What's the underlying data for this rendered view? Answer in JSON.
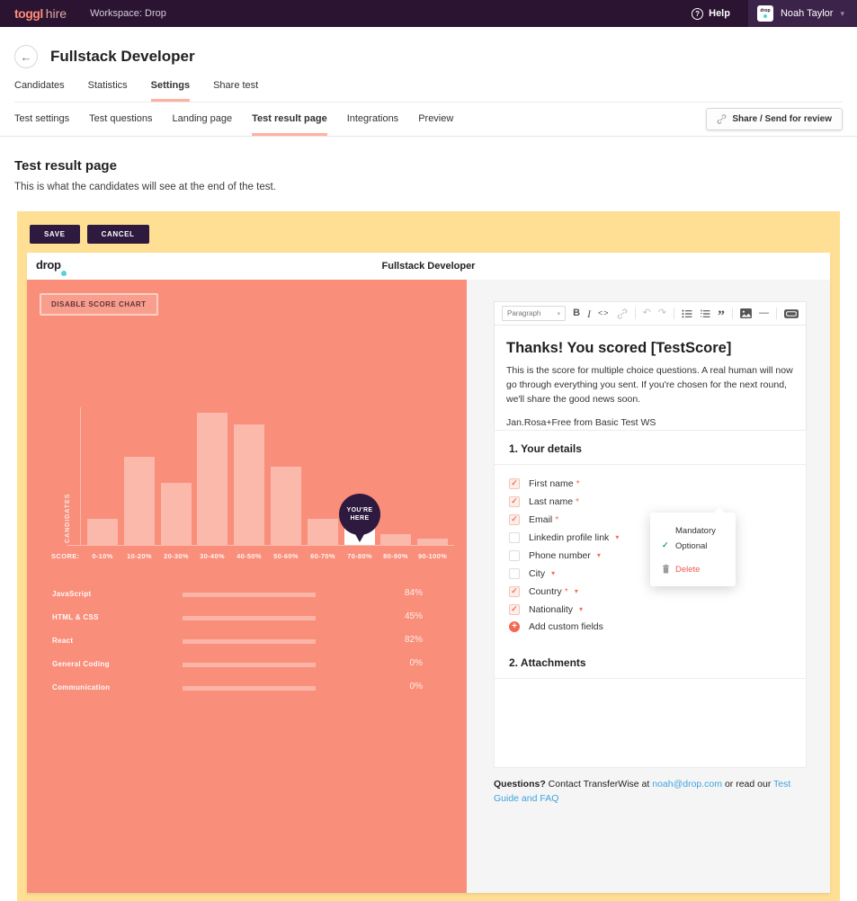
{
  "navbar": {
    "logo_toggl": "toggl",
    "logo_hire": "hire",
    "workspace": "Workspace: Drop",
    "help_label": "Help",
    "help_icon": "?",
    "avatar_text": "drop",
    "user_name": "Noah Taylor"
  },
  "header": {
    "title": "Fullstack Developer",
    "tabs": [
      {
        "label": "Candidates",
        "active": false
      },
      {
        "label": "Statistics",
        "active": false
      },
      {
        "label": "Settings",
        "active": true
      },
      {
        "label": "Share test",
        "active": false
      }
    ],
    "subtabs": [
      {
        "label": "Test settings",
        "active": false
      },
      {
        "label": "Test questions",
        "active": false
      },
      {
        "label": "Landing page",
        "active": false
      },
      {
        "label": "Test result page",
        "active": true
      },
      {
        "label": "Integrations",
        "active": false
      },
      {
        "label": "Preview",
        "active": false
      }
    ],
    "share_button": "Share / Send for review"
  },
  "page": {
    "title": "Test result page",
    "description": "This is what the candidates will see at the end of the test."
  },
  "preview": {
    "save_label": "SAVE",
    "cancel_label": "CANCEL",
    "brand": "drop",
    "test_title": "Fullstack Developer",
    "disable_chart_label": "DISABLE SCORE CHART",
    "marker_line1": "YOU'RE",
    "marker_line2": "HERE"
  },
  "chart_data": [
    {
      "type": "bar",
      "title": "Candidate score distribution",
      "xlabel": "SCORE:",
      "ylabel": "CANDIDATES",
      "categories": [
        "0-10%",
        "10-20%",
        "20-30%",
        "30-40%",
        "40-50%",
        "50-60%",
        "60-70%",
        "70-80%",
        "80-90%",
        "90-100%"
      ],
      "values": [
        20,
        67,
        47,
        100,
        91,
        59,
        20,
        12,
        8,
        5
      ],
      "value_unit": "relative height % (no numeric axis shown)",
      "highlight_category": "70-80%",
      "highlight_label": "YOU'RE HERE",
      "legend": "none",
      "grid": false
    },
    {
      "type": "bar",
      "title": "Skill scores",
      "categories": [
        "JavaScript",
        "HTML & CSS",
        "React",
        "General Coding",
        "Communication"
      ],
      "values": [
        84,
        45,
        82,
        0,
        0
      ],
      "value_labels": [
        "84%",
        "45%",
        "82%",
        "0%",
        "0%"
      ],
      "xlim": [
        0,
        100
      ],
      "legend": "none",
      "grid": false
    }
  ],
  "editor": {
    "paragraph_dropdown": "Paragraph",
    "dropdown_caret": "▾",
    "toolbar": [
      {
        "name": "bold",
        "glyph": "B",
        "enabled": true
      },
      {
        "name": "italic",
        "glyph": "I",
        "enabled": true
      },
      {
        "name": "code",
        "glyph": "<>",
        "enabled": true
      },
      {
        "name": "link",
        "glyph": "svg",
        "enabled": false
      },
      {
        "sep": true
      },
      {
        "name": "undo",
        "glyph": "↶",
        "enabled": false
      },
      {
        "name": "redo",
        "glyph": "↷",
        "enabled": false
      },
      {
        "sep": true
      },
      {
        "name": "bullet-list",
        "glyph": "svg",
        "enabled": true
      },
      {
        "name": "numbered-list",
        "glyph": "svg",
        "enabled": true
      },
      {
        "name": "quote",
        "glyph": "”",
        "enabled": true
      },
      {
        "sep": true
      },
      {
        "name": "image",
        "glyph": "svg",
        "enabled": true
      },
      {
        "name": "horizontal-rule",
        "glyph": "—",
        "enabled": true
      },
      {
        "sep": true
      },
      {
        "name": "insert-button",
        "glyph": "svg",
        "enabled": true
      }
    ],
    "heading": "Thanks! You scored [TestScore]",
    "body": "This is the score for multiple choice questions. A real human will now go through everything you sent. If you're chosen for the next round, we'll share the good news soon.",
    "signature": "Jan.Rosa+Free from Basic Test WS"
  },
  "details": {
    "section1_title": "1. Your details",
    "fields": [
      {
        "label": "First name",
        "checked": true,
        "required": true,
        "caret": false
      },
      {
        "label": "Last name",
        "checked": true,
        "required": true,
        "caret": false
      },
      {
        "label": "Email",
        "checked": true,
        "required": true,
        "caret": false
      },
      {
        "label": "Linkedin profile link",
        "checked": false,
        "required": false,
        "caret": true
      },
      {
        "label": "Phone number",
        "checked": false,
        "required": false,
        "caret": true
      },
      {
        "label": "City",
        "checked": false,
        "required": false,
        "caret": true
      },
      {
        "label": "Country",
        "checked": true,
        "required": true,
        "caret": true
      },
      {
        "label": "Nationality",
        "checked": true,
        "required": false,
        "caret": true
      }
    ],
    "add_custom_label": "Add custom fields",
    "section2_title": "2. Attachments"
  },
  "popup": {
    "mandatory_label": "Mandatory",
    "optional_label": "Optional",
    "delete_label": "Delete",
    "selected": "Optional"
  },
  "footer": {
    "bold": "Questions?",
    "text_1": " Contact TransferWise at ",
    "email": "noah@drop.com",
    "text_2": " or read our ",
    "link": "Test Guide and FAQ"
  },
  "icons": {
    "check": "✓",
    "caret_down": "▾",
    "asterisk": "*",
    "plus": "+",
    "back_arrow": "←"
  },
  "colors": {
    "navbar_bg": "#2a1432",
    "salmon_panel": "#f98e7a",
    "yellow_frame": "#ffdf94",
    "dark_purple": "#2d1a3e",
    "accent_salmon": "#f2705b",
    "tab_underline": "#ffb19f",
    "link_blue": "#3fa3de",
    "green_check": "#22a466",
    "delete_red": "#ee5a52",
    "right_panel_gray": "#f5f5f6",
    "teal_dot": "#56d0dd"
  }
}
